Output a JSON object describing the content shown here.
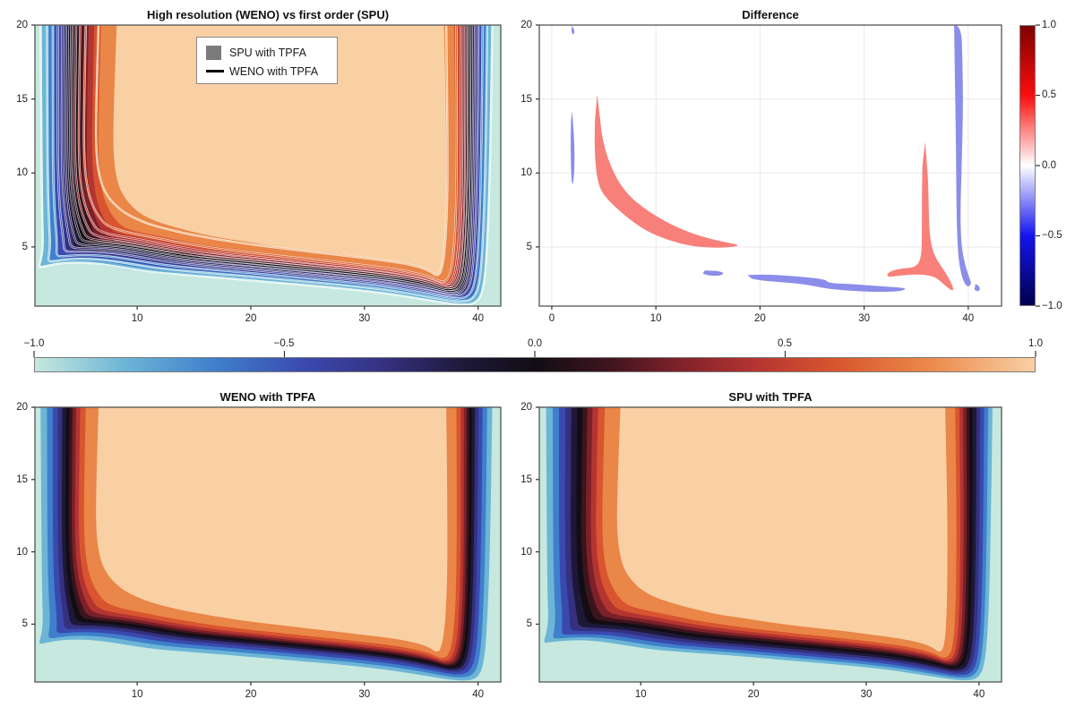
{
  "figure": {
    "bg": "#ffffff"
  },
  "colors": {
    "band_colors": [
      "#c6e8df",
      "#6cb5d6",
      "#3f7fcb",
      "#3a49ae",
      "#35317f",
      "#1e1838",
      "#120d14",
      "#3c141d",
      "#7c2029",
      "#b43431",
      "#d8552f",
      "#ea8647",
      "#f9d0a4"
    ],
    "line_colors": [
      "#e2f4ee",
      "#9fd4e4",
      "#6aa8da",
      "#525bb4",
      "#3f3a85",
      "#231d45",
      "#0e0a11",
      "#4a1823",
      "#8b242c",
      "#bf3c31",
      "#dd6a3a",
      "#f4c291"
    ],
    "diff_pos": "#f8807a",
    "diff_neg": "#8a8de9",
    "spine": "#555555",
    "tick": "#333333",
    "grid": "#e9e9e9",
    "text": "#1a1a1a",
    "legend_patch": "#7b7b7b",
    "legend_line": "#000000"
  },
  "chart_data": [
    {
      "id": "main",
      "type": "contour-filled+contour-lines",
      "title": "High resolution (WENO) vs first order (SPU)",
      "xlim": [
        1,
        42
      ],
      "ylim": [
        1,
        20
      ],
      "x_tick_values": [
        10,
        20,
        30,
        40
      ],
      "x_tick_labels": [
        "10",
        "20",
        "30",
        "40"
      ],
      "y_tick_values": [
        5,
        10,
        15,
        20
      ],
      "y_tick_labels": [
        "5",
        "10",
        "15",
        "20"
      ],
      "levels_range": [
        -1.0,
        1.0
      ],
      "fill_geometry": "spu",
      "line_geometry": "weno",
      "legend": {
        "entries": [
          {
            "label": "SPU with TPFA",
            "marker": "patch"
          },
          {
            "label": "WENO with TPFA",
            "marker": "line"
          }
        ]
      }
    },
    {
      "id": "difference",
      "type": "contour-filled",
      "title": "Difference",
      "xlim": [
        -1.2,
        43.2
      ],
      "ylim": [
        1,
        20
      ],
      "x_tick_values": [
        0,
        10,
        20,
        30,
        40
      ],
      "x_tick_labels": [
        "0",
        "10",
        "20",
        "30",
        "40"
      ],
      "y_tick_values": [
        5,
        10,
        15,
        20
      ],
      "y_tick_labels": [
        "5",
        "10",
        "15",
        "20"
      ],
      "grid": true,
      "colorbar": {
        "tick_labels": [
          "1.0",
          "0.5",
          "0.0",
          "−0.5",
          "−1.0"
        ],
        "tick_values": [
          1.0,
          0.5,
          0.0,
          -0.5,
          -1.0
        ],
        "gradient": [
          {
            "p": 0,
            "c": "#7f0000"
          },
          {
            "p": 25,
            "c": "#fb0e0e"
          },
          {
            "p": 50,
            "c": "#ffffff"
          },
          {
            "p": 75,
            "c": "#1414f0"
          },
          {
            "p": 100,
            "c": "#00004c"
          }
        ]
      },
      "regions": [
        {
          "sign": "neg",
          "value": -0.3,
          "pts": [
            [
              1.95,
              19.95
            ],
            [
              2.25,
              19.6
            ],
            [
              2.05,
              19.3
            ],
            [
              1.88,
              19.6
            ]
          ]
        },
        {
          "sign": "neg",
          "value": -0.3,
          "pts": [
            [
              1.95,
              14.2
            ],
            [
              2.15,
              12.5
            ],
            [
              2.2,
              10.8
            ],
            [
              2.1,
              9.5
            ],
            [
              1.95,
              9.1
            ],
            [
              1.85,
              10.2
            ],
            [
              1.8,
              12.0
            ],
            [
              1.85,
              13.5
            ]
          ]
        },
        {
          "sign": "pos",
          "value": 0.3,
          "pts": [
            [
              4.35,
              15.3
            ],
            [
              4.6,
              14.0
            ],
            [
              4.75,
              12.8
            ],
            [
              5.1,
              11.6
            ],
            [
              5.7,
              10.4
            ],
            [
              6.5,
              9.3
            ],
            [
              7.5,
              8.4
            ],
            [
              8.7,
              7.7
            ],
            [
              10.2,
              7.0
            ],
            [
              11.8,
              6.4
            ],
            [
              13.5,
              5.9
            ],
            [
              15.2,
              5.55
            ],
            [
              16.8,
              5.3
            ],
            [
              18.2,
              5.1
            ],
            [
              16.8,
              4.95
            ],
            [
              15.0,
              4.95
            ],
            [
              13.0,
              5.1
            ],
            [
              11.0,
              5.5
            ],
            [
              9.0,
              6.1
            ],
            [
              7.2,
              7.0
            ],
            [
              5.8,
              7.9
            ],
            [
              4.9,
              8.6
            ],
            [
              4.45,
              9.3
            ],
            [
              4.2,
              10.5
            ],
            [
              4.1,
              12.0
            ],
            [
              4.15,
              13.6
            ]
          ]
        },
        {
          "sign": "neg",
          "value": -0.3,
          "pts": [
            [
              14.7,
              3.4
            ],
            [
              15.8,
              3.4
            ],
            [
              16.6,
              3.25
            ],
            [
              16.2,
              3.05
            ],
            [
              15.1,
              3.05
            ],
            [
              14.5,
              3.2
            ]
          ]
        },
        {
          "sign": "neg",
          "value": -0.3,
          "pts": [
            [
              18.8,
              3.1
            ],
            [
              20.5,
              3.15
            ],
            [
              22.5,
              3.05
            ],
            [
              24.5,
              2.95
            ],
            [
              26.3,
              2.8
            ],
            [
              26.6,
              2.55
            ],
            [
              28.5,
              2.5
            ],
            [
              30.5,
              2.4
            ],
            [
              32.5,
              2.3
            ],
            [
              34.2,
              2.2
            ],
            [
              33.5,
              2.0
            ],
            [
              31.5,
              1.95
            ],
            [
              29.5,
              2.0
            ],
            [
              27.5,
              2.1
            ],
            [
              26.3,
              2.2
            ],
            [
              24.5,
              2.45
            ],
            [
              22.5,
              2.6
            ],
            [
              20.5,
              2.7
            ],
            [
              19.2,
              2.85
            ]
          ]
        },
        {
          "sign": "pos",
          "value": 0.3,
          "pts": [
            [
              35.85,
              12.1
            ],
            [
              36.1,
              10.2
            ],
            [
              36.2,
              8.2
            ],
            [
              36.25,
              6.2
            ],
            [
              36.5,
              4.9
            ],
            [
              37.0,
              4.1
            ],
            [
              37.8,
              3.3
            ],
            [
              38.4,
              2.55
            ],
            [
              38.65,
              1.95
            ],
            [
              37.9,
              2.3
            ],
            [
              37.0,
              2.9
            ],
            [
              36.1,
              3.1
            ],
            [
              34.8,
              3.15
            ],
            [
              33.4,
              3.05
            ],
            [
              32.1,
              2.95
            ],
            [
              32.4,
              3.35
            ],
            [
              33.6,
              3.55
            ],
            [
              34.9,
              3.6
            ],
            [
              35.5,
              4.2
            ],
            [
              35.55,
              6.0
            ],
            [
              35.55,
              8.5
            ],
            [
              35.6,
              10.5
            ]
          ]
        },
        {
          "sign": "neg",
          "value": -0.3,
          "pts": [
            [
              38.65,
              20
            ],
            [
              39.35,
              20
            ],
            [
              39.45,
              17.5
            ],
            [
              39.5,
              15.0
            ],
            [
              39.45,
              12.5
            ],
            [
              39.35,
              10.0
            ],
            [
              39.25,
              7.5
            ],
            [
              39.3,
              5.5
            ],
            [
              39.55,
              4.2
            ],
            [
              40.0,
              3.1
            ],
            [
              40.35,
              2.5
            ],
            [
              39.9,
              2.25
            ],
            [
              39.4,
              2.9
            ],
            [
              39.05,
              4.2
            ],
            [
              38.9,
              6.5
            ],
            [
              38.85,
              9.5
            ],
            [
              38.8,
              13.0
            ],
            [
              38.72,
              16.5
            ]
          ]
        },
        {
          "sign": "neg",
          "value": -0.3,
          "pts": [
            [
              40.7,
              2.5
            ],
            [
              41.15,
              2.35
            ],
            [
              41.05,
              1.95
            ],
            [
              40.6,
              2.1
            ]
          ]
        }
      ]
    },
    {
      "id": "weno",
      "type": "contour-filled",
      "title": "WENO with TPFA",
      "xlim": [
        1,
        42
      ],
      "ylim": [
        1,
        20
      ],
      "x_tick_values": [
        10,
        20,
        30,
        40
      ],
      "x_tick_labels": [
        "10",
        "20",
        "30",
        "40"
      ],
      "y_tick_values": [
        5,
        10,
        15,
        20
      ],
      "y_tick_labels": [
        "5",
        "10",
        "15",
        "20"
      ],
      "levels_range": [
        -1.0,
        1.0
      ],
      "fill_geometry": "weno"
    },
    {
      "id": "spu",
      "type": "contour-filled",
      "title": "SPU with TPFA",
      "xlim": [
        1,
        42
      ],
      "ylim": [
        1,
        20
      ],
      "x_tick_values": [
        10,
        20,
        30,
        40
      ],
      "x_tick_labels": [
        "10",
        "20",
        "30",
        "40"
      ],
      "y_tick_values": [
        5,
        10,
        15,
        20
      ],
      "y_tick_labels": [
        "5",
        "10",
        "15",
        "20"
      ],
      "levels_range": [
        -1.0,
        1.0
      ],
      "fill_geometry": "spu"
    }
  ],
  "geometries": {
    "spu": {
      "outer": [
        [
          1.6,
          20
        ],
        [
          1.65,
          13
        ],
        [
          1.7,
          9
        ],
        [
          1.75,
          6.6
        ],
        [
          1.8,
          5.2
        ],
        [
          1.6,
          4.3
        ],
        [
          1.35,
          3.7
        ],
        [
          1.9,
          3.75
        ],
        [
          3.1,
          3.85
        ],
        [
          4.8,
          3.9
        ],
        [
          6.5,
          3.8
        ],
        [
          8.5,
          3.55
        ],
        [
          11,
          3.25
        ],
        [
          14,
          3.05
        ],
        [
          17,
          2.9
        ],
        [
          20,
          2.7
        ],
        [
          23,
          2.5
        ],
        [
          26,
          2.3
        ],
        [
          29,
          2.1
        ],
        [
          32,
          1.85
        ],
        [
          34.5,
          1.55
        ],
        [
          36.5,
          1.3
        ],
        [
          38.5,
          1.08
        ],
        [
          40,
          1.2
        ],
        [
          40.6,
          2.5
        ],
        [
          40.9,
          6.5
        ],
        [
          41.05,
          12
        ],
        [
          41.2,
          20
        ]
      ],
      "inner": [
        [
          8.2,
          20
        ],
        [
          7.9,
          14
        ],
        [
          7.9,
          11
        ],
        [
          8.3,
          9.2
        ],
        [
          8.9,
          8.3
        ],
        [
          9.7,
          7.6
        ],
        [
          10.6,
          7.1
        ],
        [
          11.6,
          6.75
        ],
        [
          12.8,
          6.45
        ],
        [
          14.2,
          6.15
        ],
        [
          15.8,
          5.85
        ],
        [
          17.4,
          5.6
        ],
        [
          19.2,
          5.4
        ],
        [
          21.2,
          5.15
        ],
        [
          23.2,
          4.95
        ],
        [
          25.2,
          4.75
        ],
        [
          27.2,
          4.6
        ],
        [
          29.2,
          4.4
        ],
        [
          31.2,
          4.2
        ],
        [
          33,
          4
        ],
        [
          34.6,
          3.75
        ],
        [
          35.8,
          3.45
        ],
        [
          36.5,
          3
        ],
        [
          36.9,
          3.4
        ],
        [
          37.1,
          5
        ],
        [
          37.2,
          8
        ],
        [
          37.2,
          13
        ],
        [
          37,
          20
        ]
      ],
      "spacing": [
        0,
        0.09,
        0.175,
        0.26,
        0.34,
        0.42,
        0.49,
        0.555,
        0.625,
        0.7,
        0.79,
        1
      ]
    },
    "weno": {
      "outer": [
        [
          1.5,
          20
        ],
        [
          1.55,
          13
        ],
        [
          1.6,
          9
        ],
        [
          1.65,
          6.6
        ],
        [
          1.7,
          5
        ],
        [
          1.55,
          4.2
        ],
        [
          1.3,
          3.6
        ],
        [
          1.95,
          3.7
        ],
        [
          3.2,
          3.9
        ],
        [
          5,
          3.95
        ],
        [
          6.8,
          3.85
        ],
        [
          8.8,
          3.6
        ],
        [
          11.2,
          3.3
        ],
        [
          14.2,
          3.1
        ],
        [
          17.2,
          2.92
        ],
        [
          20.2,
          2.72
        ],
        [
          23.2,
          2.52
        ],
        [
          26.2,
          2.32
        ],
        [
          29.2,
          2.1
        ],
        [
          32,
          1.85
        ],
        [
          34.5,
          1.55
        ],
        [
          36.5,
          1.28
        ],
        [
          38.5,
          1.06
        ],
        [
          40,
          1.2
        ],
        [
          40.6,
          2.5
        ],
        [
          40.9,
          6.5
        ],
        [
          41.1,
          12
        ],
        [
          41.25,
          20
        ]
      ],
      "inner": [
        [
          6.6,
          20
        ],
        [
          6.35,
          14
        ],
        [
          6.4,
          11
        ],
        [
          6.8,
          9.3
        ],
        [
          7.4,
          8.4
        ],
        [
          8.1,
          7.8
        ],
        [
          8.9,
          7.3
        ],
        [
          9.9,
          6.9
        ],
        [
          11,
          6.55
        ],
        [
          12.4,
          6.25
        ],
        [
          14,
          5.95
        ],
        [
          15.7,
          5.7
        ],
        [
          17.6,
          5.45
        ],
        [
          19.7,
          5.2
        ],
        [
          21.8,
          5
        ],
        [
          24,
          4.8
        ],
        [
          26.2,
          4.6
        ],
        [
          28.4,
          4.4
        ],
        [
          30.6,
          4.2
        ],
        [
          32.6,
          4
        ],
        [
          34.3,
          3.75
        ],
        [
          35.6,
          3.45
        ],
        [
          36.4,
          3
        ],
        [
          36.8,
          3.4
        ],
        [
          37.1,
          5
        ],
        [
          37.3,
          8
        ],
        [
          37.3,
          13
        ],
        [
          37.2,
          20
        ]
      ],
      "spacing": [
        0,
        0.11,
        0.21,
        0.3,
        0.375,
        0.44,
        0.5,
        0.555,
        0.615,
        0.685,
        0.78,
        1
      ]
    }
  },
  "hcolorbar": {
    "tick_labels": [
      "−1.0",
      "−0.5",
      "0.0",
      "0.5",
      "1.0"
    ],
    "tick_values": [
      -1.0,
      -0.5,
      0.0,
      0.5,
      1.0
    ],
    "gradient": [
      {
        "p": 0,
        "c": "#c6e8df"
      },
      {
        "p": 9,
        "c": "#6cb5d6"
      },
      {
        "p": 18,
        "c": "#3f7fcb"
      },
      {
        "p": 27,
        "c": "#3a49ae"
      },
      {
        "p": 35,
        "c": "#35317f"
      },
      {
        "p": 43,
        "c": "#1e1838"
      },
      {
        "p": 50,
        "c": "#120d14"
      },
      {
        "p": 57,
        "c": "#3c141d"
      },
      {
        "p": 64,
        "c": "#7c2029"
      },
      {
        "p": 72,
        "c": "#b43431"
      },
      {
        "p": 80,
        "c": "#d8552f"
      },
      {
        "p": 89,
        "c": "#ea8647"
      },
      {
        "p": 100,
        "c": "#f9d0a4"
      }
    ]
  }
}
